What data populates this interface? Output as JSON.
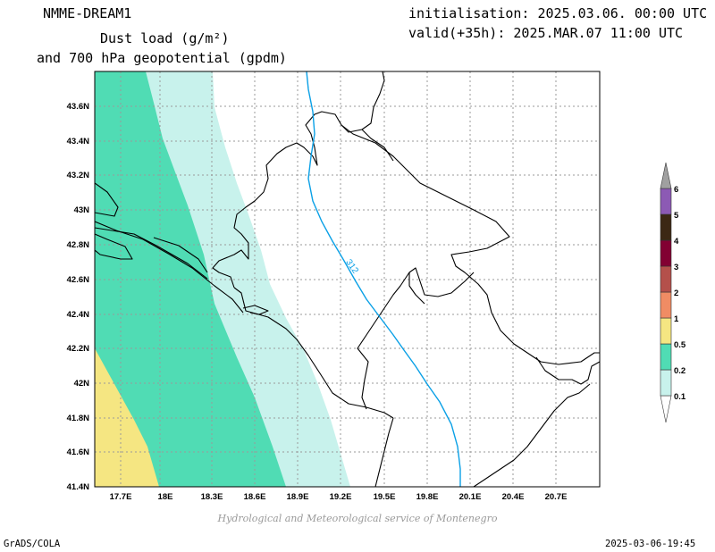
{
  "header": {
    "model": "NMME-DREAM1",
    "title_line1": "Dust load (g/m²)",
    "title_line2": "and 700 hPa geopotential (gpdm)",
    "init": "initialisation: 2025.03.06. 00:00 UTC",
    "valid": "valid(+35h): 2025.MAR.07 11:00 UTC"
  },
  "footer": {
    "credit": "Hydrological and Meteorological service of Montenegro",
    "left": "GrADS/COLA",
    "right": "2025-03-06-19:45"
  },
  "map": {
    "lat_labels": [
      "43.6N",
      "43.4N",
      "43.2N",
      "43N",
      "42.8N",
      "42.6N",
      "42.4N",
      "42.2N",
      "42N",
      "41.8N",
      "41.6N",
      "41.4N"
    ],
    "lon_labels": [
      "17.7E",
      "18E",
      "18.3E",
      "18.6E",
      "18.9E",
      "19.2E",
      "19.5E",
      "19.8E",
      "20.1E",
      "20.4E",
      "20.7E"
    ],
    "contour_label": "312",
    "colors": {
      "band_0_1": "#c8f2ec",
      "band_0_2": "#50dcb4",
      "band_0_5": "#f5e682",
      "contour": "#0aa0e6"
    }
  },
  "colorbar": {
    "labels": [
      "0.1",
      "0.2",
      "0.5",
      "1",
      "2",
      "3",
      "4",
      "5",
      "6"
    ],
    "colors": [
      "#c8f2ec",
      "#50dcb4",
      "#f5e682",
      "#f08c64",
      "#b4504b",
      "#820032",
      "#3c2814",
      "#8c5ab4",
      "#a0a0a0"
    ]
  }
}
